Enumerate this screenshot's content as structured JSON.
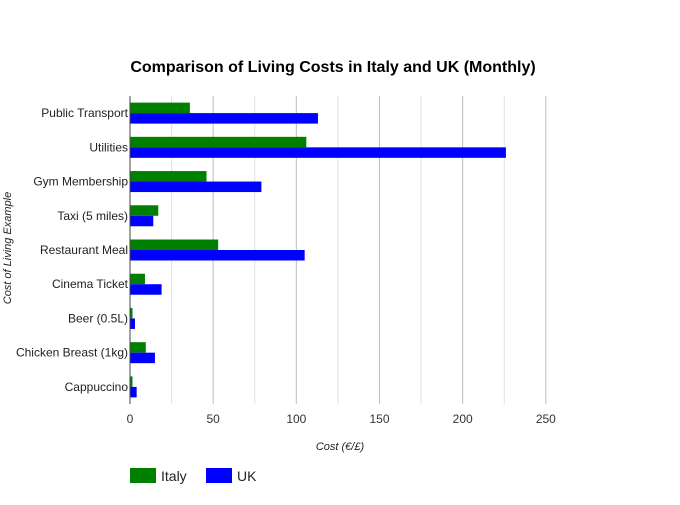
{
  "chart_data": {
    "type": "bar",
    "orientation": "horizontal",
    "title": "Comparison of Living Costs in Italy and UK (Monthly)",
    "xlabel": "Cost (€/£)",
    "ylabel": "Cost of Living Example",
    "xlim": [
      0,
      250
    ],
    "xticks": [
      0,
      50,
      100,
      150,
      200,
      250
    ],
    "grid": true,
    "legend_position": "bottom-left",
    "categories": [
      "Public Transport",
      "Utilities",
      "Gym Membership",
      "Taxi (5 miles)",
      "Restaurant Meal",
      "Cinema Ticket",
      "Beer (0.5L)",
      "Chicken Breast (1kg)",
      "Cappuccino"
    ],
    "series": [
      {
        "name": "Italy",
        "color": "#008000",
        "values": [
          36,
          106,
          46,
          17,
          53,
          9,
          1.5,
          9.5,
          1.5
        ]
      },
      {
        "name": "UK",
        "color": "#0000ff",
        "values": [
          113,
          226,
          79,
          14,
          105,
          19,
          3,
          15,
          4
        ]
      }
    ]
  }
}
